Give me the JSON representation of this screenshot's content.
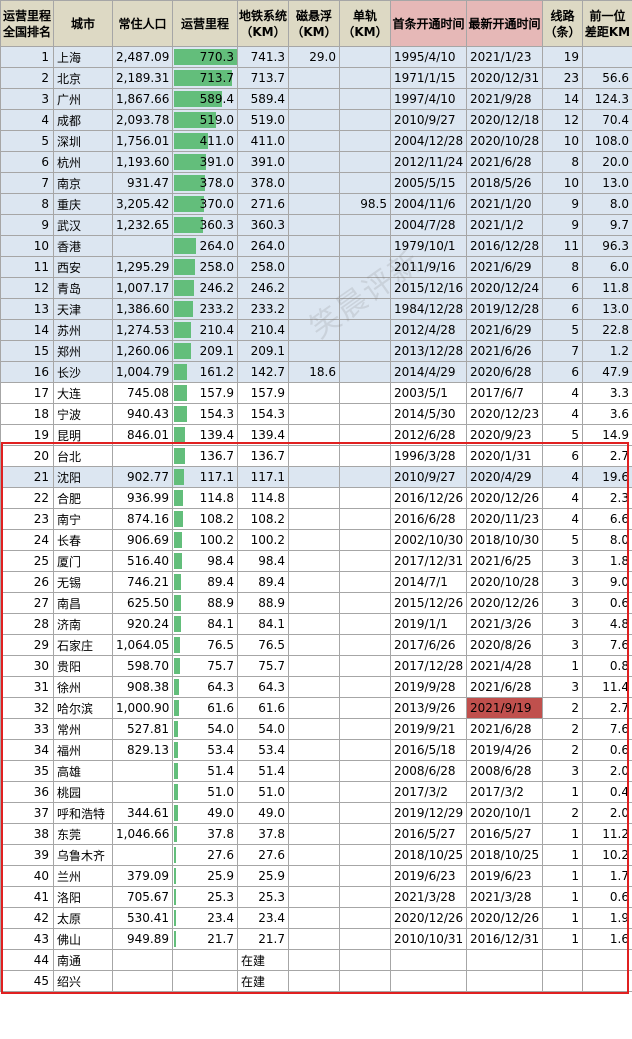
{
  "headers": {
    "rank": "运营里程全国排名",
    "city": "城市",
    "pop": "常住人口",
    "total": "运营里程",
    "metro": "地铁系统（KM）",
    "maglev": "磁悬浮（KM）",
    "mono": "单轨（KM）",
    "first": "首条开通时间",
    "latest": "最新开通时间",
    "lines": "线路（条）",
    "gap": "前一位差距KM"
  },
  "watermark": "笑晨评新",
  "bar_max": 770.3,
  "rows": [
    {
      "rank": "1",
      "city": "上海",
      "pop": "2,487.09",
      "total": "770.3",
      "metro": "741.3",
      "maglev": "29.0",
      "mono": "",
      "first": "1995/4/10",
      "latest": "2021/1/23",
      "lines": "19",
      "gap": "",
      "blue": true
    },
    {
      "rank": "2",
      "city": "北京",
      "pop": "2,189.31",
      "total": "713.7",
      "metro": "713.7",
      "maglev": "",
      "mono": "",
      "first": "1971/1/15",
      "latest": "2020/12/31",
      "lines": "23",
      "gap": "56.6",
      "blue": true
    },
    {
      "rank": "3",
      "city": "广州",
      "pop": "1,867.66",
      "total": "589.4",
      "metro": "589.4",
      "maglev": "",
      "mono": "",
      "first": "1997/4/10",
      "latest": "2021/9/28",
      "lines": "14",
      "gap": "124.3",
      "blue": true
    },
    {
      "rank": "4",
      "city": "成都",
      "pop": "2,093.78",
      "total": "519.0",
      "metro": "519.0",
      "maglev": "",
      "mono": "",
      "first": "2010/9/27",
      "latest": "2020/12/18",
      "lines": "12",
      "gap": "70.4",
      "blue": true
    },
    {
      "rank": "5",
      "city": "深圳",
      "pop": "1,756.01",
      "total": "411.0",
      "metro": "411.0",
      "maglev": "",
      "mono": "",
      "first": "2004/12/28",
      "latest": "2020/10/28",
      "lines": "10",
      "gap": "108.0",
      "blue": true
    },
    {
      "rank": "6",
      "city": "杭州",
      "pop": "1,193.60",
      "total": "391.0",
      "metro": "391.0",
      "maglev": "",
      "mono": "",
      "first": "2012/11/24",
      "latest": "2021/6/28",
      "lines": "8",
      "gap": "20.0",
      "blue": true
    },
    {
      "rank": "7",
      "city": "南京",
      "pop": "931.47",
      "total": "378.0",
      "metro": "378.0",
      "maglev": "",
      "mono": "",
      "first": "2005/5/15",
      "latest": "2018/5/26",
      "lines": "10",
      "gap": "13.0",
      "blue": true
    },
    {
      "rank": "8",
      "city": "重庆",
      "pop": "3,205.42",
      "total": "370.0",
      "metro": "271.6",
      "maglev": "",
      "mono": "98.5",
      "first": "2004/11/6",
      "latest": "2021/1/20",
      "lines": "9",
      "gap": "8.0",
      "blue": true
    },
    {
      "rank": "9",
      "city": "武汉",
      "pop": "1,232.65",
      "total": "360.3",
      "metro": "360.3",
      "maglev": "",
      "mono": "",
      "first": "2004/7/28",
      "latest": "2021/1/2",
      "lines": "9",
      "gap": "9.7",
      "blue": true
    },
    {
      "rank": "10",
      "city": "香港",
      "pop": "",
      "total": "264.0",
      "metro": "264.0",
      "maglev": "",
      "mono": "",
      "first": "1979/10/1",
      "latest": "2016/12/28",
      "lines": "11",
      "gap": "96.3",
      "blue": true
    },
    {
      "rank": "11",
      "city": "西安",
      "pop": "1,295.29",
      "total": "258.0",
      "metro": "258.0",
      "maglev": "",
      "mono": "",
      "first": "2011/9/16",
      "latest": "2021/6/29",
      "lines": "8",
      "gap": "6.0",
      "blue": true
    },
    {
      "rank": "12",
      "city": "青岛",
      "pop": "1,007.17",
      "total": "246.2",
      "metro": "246.2",
      "maglev": "",
      "mono": "",
      "first": "2015/12/16",
      "latest": "2020/12/24",
      "lines": "6",
      "gap": "11.8",
      "blue": true
    },
    {
      "rank": "13",
      "city": "天津",
      "pop": "1,386.60",
      "total": "233.2",
      "metro": "233.2",
      "maglev": "",
      "mono": "",
      "first": "1984/12/28",
      "latest": "2019/12/28",
      "lines": "6",
      "gap": "13.0",
      "blue": true
    },
    {
      "rank": "14",
      "city": "苏州",
      "pop": "1,274.53",
      "total": "210.4",
      "metro": "210.4",
      "maglev": "",
      "mono": "",
      "first": "2012/4/28",
      "latest": "2021/6/29",
      "lines": "5",
      "gap": "22.8",
      "blue": true
    },
    {
      "rank": "15",
      "city": "郑州",
      "pop": "1,260.06",
      "total": "209.1",
      "metro": "209.1",
      "maglev": "",
      "mono": "",
      "first": "2013/12/28",
      "latest": "2021/6/26",
      "lines": "7",
      "gap": "1.2",
      "blue": true
    },
    {
      "rank": "16",
      "city": "长沙",
      "pop": "1,004.79",
      "total": "161.2",
      "metro": "142.7",
      "maglev": "18.6",
      "mono": "",
      "first": "2014/4/29",
      "latest": "2020/6/28",
      "lines": "6",
      "gap": "47.9",
      "blue": true
    },
    {
      "rank": "17",
      "city": "大连",
      "pop": "745.08",
      "total": "157.9",
      "metro": "157.9",
      "maglev": "",
      "mono": "",
      "first": "2003/5/1",
      "latest": "2017/6/7",
      "lines": "4",
      "gap": "3.3",
      "blue": false
    },
    {
      "rank": "18",
      "city": "宁波",
      "pop": "940.43",
      "total": "154.3",
      "metro": "154.3",
      "maglev": "",
      "mono": "",
      "first": "2014/5/30",
      "latest": "2020/12/23",
      "lines": "4",
      "gap": "3.6",
      "blue": false
    },
    {
      "rank": "19",
      "city": "昆明",
      "pop": "846.01",
      "total": "139.4",
      "metro": "139.4",
      "maglev": "",
      "mono": "",
      "first": "2012/6/28",
      "latest": "2020/9/23",
      "lines": "5",
      "gap": "14.9",
      "blue": false
    },
    {
      "rank": "20",
      "city": "台北",
      "pop": "",
      "total": "136.7",
      "metro": "136.7",
      "maglev": "",
      "mono": "",
      "first": "1996/3/28",
      "latest": "2020/1/31",
      "lines": "6",
      "gap": "2.7",
      "blue": false
    },
    {
      "rank": "21",
      "city": "沈阳",
      "pop": "902.77",
      "total": "117.1",
      "metro": "117.1",
      "maglev": "",
      "mono": "",
      "first": "2010/9/27",
      "latest": "2020/4/29",
      "lines": "4",
      "gap": "19.6",
      "blue": true
    },
    {
      "rank": "22",
      "city": "合肥",
      "pop": "936.99",
      "total": "114.8",
      "metro": "114.8",
      "maglev": "",
      "mono": "",
      "first": "2016/12/26",
      "latest": "2020/12/26",
      "lines": "4",
      "gap": "2.3",
      "blue": false
    },
    {
      "rank": "23",
      "city": "南宁",
      "pop": "874.16",
      "total": "108.2",
      "metro": "108.2",
      "maglev": "",
      "mono": "",
      "first": "2016/6/28",
      "latest": "2020/11/23",
      "lines": "4",
      "gap": "6.6",
      "blue": false
    },
    {
      "rank": "24",
      "city": "长春",
      "pop": "906.69",
      "total": "100.2",
      "metro": "100.2",
      "maglev": "",
      "mono": "",
      "first": "2002/10/30",
      "latest": "2018/10/30",
      "lines": "5",
      "gap": "8.0",
      "blue": false
    },
    {
      "rank": "25",
      "city": "厦门",
      "pop": "516.40",
      "total": "98.4",
      "metro": "98.4",
      "maglev": "",
      "mono": "",
      "first": "2017/12/31",
      "latest": "2021/6/25",
      "lines": "3",
      "gap": "1.8",
      "blue": false
    },
    {
      "rank": "26",
      "city": "无锡",
      "pop": "746.21",
      "total": "89.4",
      "metro": "89.4",
      "maglev": "",
      "mono": "",
      "first": "2014/7/1",
      "latest": "2020/10/28",
      "lines": "3",
      "gap": "9.0",
      "blue": false
    },
    {
      "rank": "27",
      "city": "南昌",
      "pop": "625.50",
      "total": "88.9",
      "metro": "88.9",
      "maglev": "",
      "mono": "",
      "first": "2015/12/26",
      "latest": "2020/12/26",
      "lines": "3",
      "gap": "0.6",
      "blue": false
    },
    {
      "rank": "28",
      "city": "济南",
      "pop": "920.24",
      "total": "84.1",
      "metro": "84.1",
      "maglev": "",
      "mono": "",
      "first": "2019/1/1",
      "latest": "2021/3/26",
      "lines": "3",
      "gap": "4.8",
      "blue": false
    },
    {
      "rank": "29",
      "city": "石家庄",
      "pop": "1,064.05",
      "total": "76.5",
      "metro": "76.5",
      "maglev": "",
      "mono": "",
      "first": "2017/6/26",
      "latest": "2020/8/26",
      "lines": "3",
      "gap": "7.6",
      "blue": false
    },
    {
      "rank": "30",
      "city": "贵阳",
      "pop": "598.70",
      "total": "75.7",
      "metro": "75.7",
      "maglev": "",
      "mono": "",
      "first": "2017/12/28",
      "latest": "2021/4/28",
      "lines": "1",
      "gap": "0.8",
      "blue": false
    },
    {
      "rank": "31",
      "city": "徐州",
      "pop": "908.38",
      "total": "64.3",
      "metro": "64.3",
      "maglev": "",
      "mono": "",
      "first": "2019/9/28",
      "latest": "2021/6/28",
      "lines": "3",
      "gap": "11.4",
      "blue": false
    },
    {
      "rank": "32",
      "city": "哈尔滨",
      "pop": "1,000.90",
      "total": "61.6",
      "metro": "61.6",
      "maglev": "",
      "mono": "",
      "first": "2013/9/26",
      "latest": "2021/9/19",
      "lines": "2",
      "gap": "2.7",
      "blue": false,
      "hl": true
    },
    {
      "rank": "33",
      "city": "常州",
      "pop": "527.81",
      "total": "54.0",
      "metro": "54.0",
      "maglev": "",
      "mono": "",
      "first": "2019/9/21",
      "latest": "2021/6/28",
      "lines": "2",
      "gap": "7.6",
      "blue": false
    },
    {
      "rank": "34",
      "city": "福州",
      "pop": "829.13",
      "total": "53.4",
      "metro": "53.4",
      "maglev": "",
      "mono": "",
      "first": "2016/5/18",
      "latest": "2019/4/26",
      "lines": "2",
      "gap": "0.6",
      "blue": false
    },
    {
      "rank": "35",
      "city": "高雄",
      "pop": "",
      "total": "51.4",
      "metro": "51.4",
      "maglev": "",
      "mono": "",
      "first": "2008/6/28",
      "latest": "2008/6/28",
      "lines": "3",
      "gap": "2.0",
      "blue": false
    },
    {
      "rank": "36",
      "city": "桃园",
      "pop": "",
      "total": "51.0",
      "metro": "51.0",
      "maglev": "",
      "mono": "",
      "first": "2017/3/2",
      "latest": "2017/3/2",
      "lines": "1",
      "gap": "0.4",
      "blue": false
    },
    {
      "rank": "37",
      "city": "呼和浩特",
      "pop": "344.61",
      "total": "49.0",
      "metro": "49.0",
      "maglev": "",
      "mono": "",
      "first": "2019/12/29",
      "latest": "2020/10/1",
      "lines": "2",
      "gap": "2.0",
      "blue": false
    },
    {
      "rank": "38",
      "city": "东莞",
      "pop": "1,046.66",
      "total": "37.8",
      "metro": "37.8",
      "maglev": "",
      "mono": "",
      "first": "2016/5/27",
      "latest": "2016/5/27",
      "lines": "1",
      "gap": "11.2",
      "blue": false
    },
    {
      "rank": "39",
      "city": "乌鲁木齐",
      "pop": "",
      "total": "27.6",
      "metro": "27.6",
      "maglev": "",
      "mono": "",
      "first": "2018/10/25",
      "latest": "2018/10/25",
      "lines": "1",
      "gap": "10.2",
      "blue": false
    },
    {
      "rank": "40",
      "city": "兰州",
      "pop": "379.09",
      "total": "25.9",
      "metro": "25.9",
      "maglev": "",
      "mono": "",
      "first": "2019/6/23",
      "latest": "2019/6/23",
      "lines": "1",
      "gap": "1.7",
      "blue": false
    },
    {
      "rank": "41",
      "city": "洛阳",
      "pop": "705.67",
      "total": "25.3",
      "metro": "25.3",
      "maglev": "",
      "mono": "",
      "first": "2021/3/28",
      "latest": "2021/3/28",
      "lines": "1",
      "gap": "0.6",
      "blue": false
    },
    {
      "rank": "42",
      "city": "太原",
      "pop": "530.41",
      "total": "23.4",
      "metro": "23.4",
      "maglev": "",
      "mono": "",
      "first": "2020/12/26",
      "latest": "2020/12/26",
      "lines": "1",
      "gap": "1.9",
      "blue": false
    },
    {
      "rank": "43",
      "city": "佛山",
      "pop": "949.89",
      "total": "21.7",
      "metro": "21.7",
      "maglev": "",
      "mono": "",
      "first": "2010/10/31",
      "latest": "2016/12/31",
      "lines": "1",
      "gap": "1.6",
      "blue": false
    },
    {
      "rank": "44",
      "city": "南通",
      "pop": "",
      "total": "",
      "metro": "在建",
      "maglev": "",
      "mono": "",
      "first": "",
      "latest": "",
      "lines": "",
      "gap": "",
      "blue": false
    },
    {
      "rank": "45",
      "city": "绍兴",
      "pop": "",
      "total": "",
      "metro": "在建",
      "maglev": "",
      "mono": "",
      "first": "",
      "latest": "",
      "lines": "",
      "gap": "",
      "blue": false
    }
  ]
}
